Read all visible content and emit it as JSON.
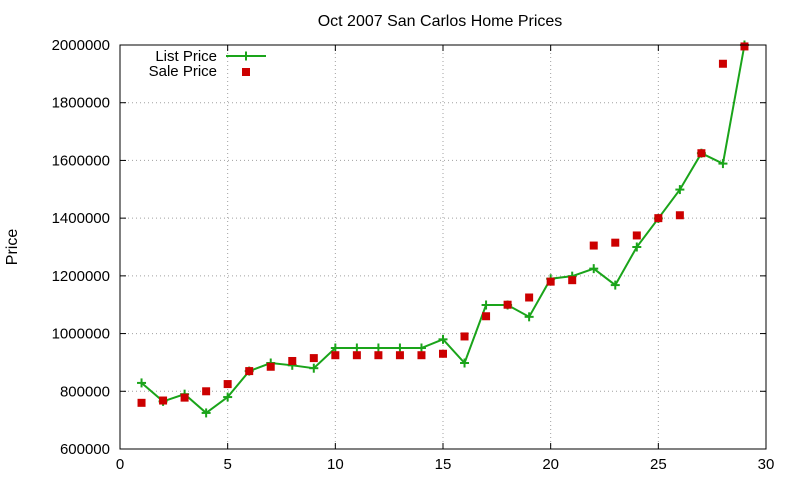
{
  "chart_data": {
    "type": "line",
    "title": "Oct 2007 San Carlos Home Prices",
    "xlabel": "",
    "ylabel": "Price",
    "xlim": [
      0,
      30
    ],
    "ylim": [
      600000,
      2000000
    ],
    "xticks": [
      0,
      5,
      10,
      15,
      20,
      25,
      30
    ],
    "yticks": [
      600000,
      800000,
      1000000,
      1200000,
      1400000,
      1600000,
      1800000,
      2000000
    ],
    "grid": true,
    "legend_position": "top-left",
    "series": [
      {
        "name": "List Price",
        "style": "lines+points",
        "marker": "plus",
        "color": "#1aa41a",
        "x": [
          1,
          2,
          3,
          4,
          5,
          6,
          7,
          8,
          9,
          10,
          11,
          12,
          13,
          14,
          15,
          16,
          17,
          18,
          19,
          20,
          21,
          22,
          23,
          24,
          25,
          26,
          27,
          28,
          29
        ],
        "y": [
          829000,
          765000,
          790000,
          725000,
          780000,
          870000,
          898000,
          890000,
          880000,
          950000,
          950000,
          950000,
          950000,
          950000,
          980000,
          898000,
          1099000,
          1099000,
          1058000,
          1190000,
          1199000,
          1225000,
          1168000,
          1300000,
          1399000,
          1499000,
          1625000,
          1589000,
          2000000
        ]
      },
      {
        "name": "Sale Price",
        "style": "points",
        "marker": "square",
        "color": "#cc0000",
        "x": [
          1,
          2,
          3,
          4,
          5,
          6,
          7,
          8,
          9,
          10,
          11,
          12,
          13,
          14,
          15,
          16,
          17,
          18,
          19,
          20,
          21,
          22,
          23,
          24,
          25,
          26,
          27,
          28,
          29
        ],
        "y": [
          760000,
          768000,
          778000,
          800000,
          825000,
          870000,
          885000,
          905000,
          915000,
          925000,
          925000,
          925000,
          925000,
          925000,
          930000,
          990000,
          1060000,
          1100000,
          1125000,
          1180000,
          1185000,
          1305000,
          1315000,
          1340000,
          1400000,
          1410000,
          1625000,
          1935000,
          1995000
        ]
      }
    ]
  }
}
